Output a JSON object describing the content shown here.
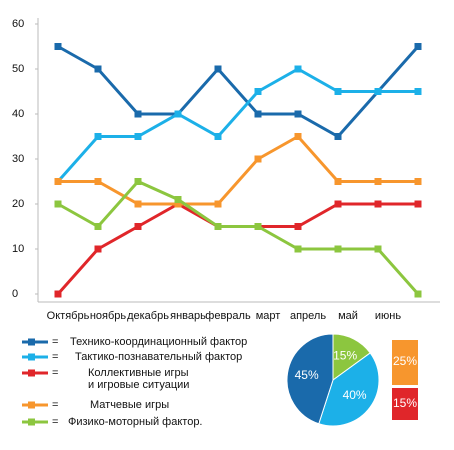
{
  "chart_data": {
    "type": "line",
    "categories": [
      "Октябрь",
      "ноябрь",
      "декабрь",
      "январь",
      "февраль",
      "март",
      "апрель",
      "май",
      "июнь",
      null
    ],
    "ylim": [
      0,
      60
    ],
    "yticks": [
      0,
      10,
      20,
      30,
      40,
      50,
      60
    ],
    "legend_separator": "=",
    "series": [
      {
        "name": "Технико-координационный фактор",
        "color": "#1a6aab",
        "values": [
          55,
          50,
          40,
          40,
          50,
          40,
          40,
          35,
          45,
          55
        ]
      },
      {
        "name": "Тактико-познавательный фактор",
        "color": "#1cb0e8",
        "values": [
          25,
          35,
          35,
          40,
          35,
          45,
          50,
          45,
          45,
          45
        ]
      },
      {
        "name": "Коллективные игры\nи игровые ситуации",
        "color": "#e0262a",
        "values": [
          0,
          10,
          15,
          20,
          15,
          15,
          15,
          20,
          20,
          20
        ]
      },
      {
        "name": "Матчевые игры",
        "color": "#f7962d",
        "values": [
          25,
          25,
          20,
          20,
          20,
          30,
          35,
          25,
          25,
          25
        ]
      },
      {
        "name": "Физико-моторный фактор.",
        "color": "#8cc63f",
        "values": [
          20,
          15,
          25,
          21,
          15,
          15,
          10,
          10,
          10,
          0
        ]
      }
    ],
    "pie": {
      "values": [
        15,
        40,
        45
      ],
      "value_labels": [
        "15%",
        "40%",
        "45%"
      ],
      "colors": [
        "#8cc63f",
        "#1cb0e8",
        "#1a6aab"
      ]
    },
    "side_boxes": {
      "values": [
        25,
        15
      ],
      "value_labels": [
        "25%",
        "15%"
      ],
      "colors": [
        "#f7962d",
        "#e0262a"
      ]
    }
  }
}
